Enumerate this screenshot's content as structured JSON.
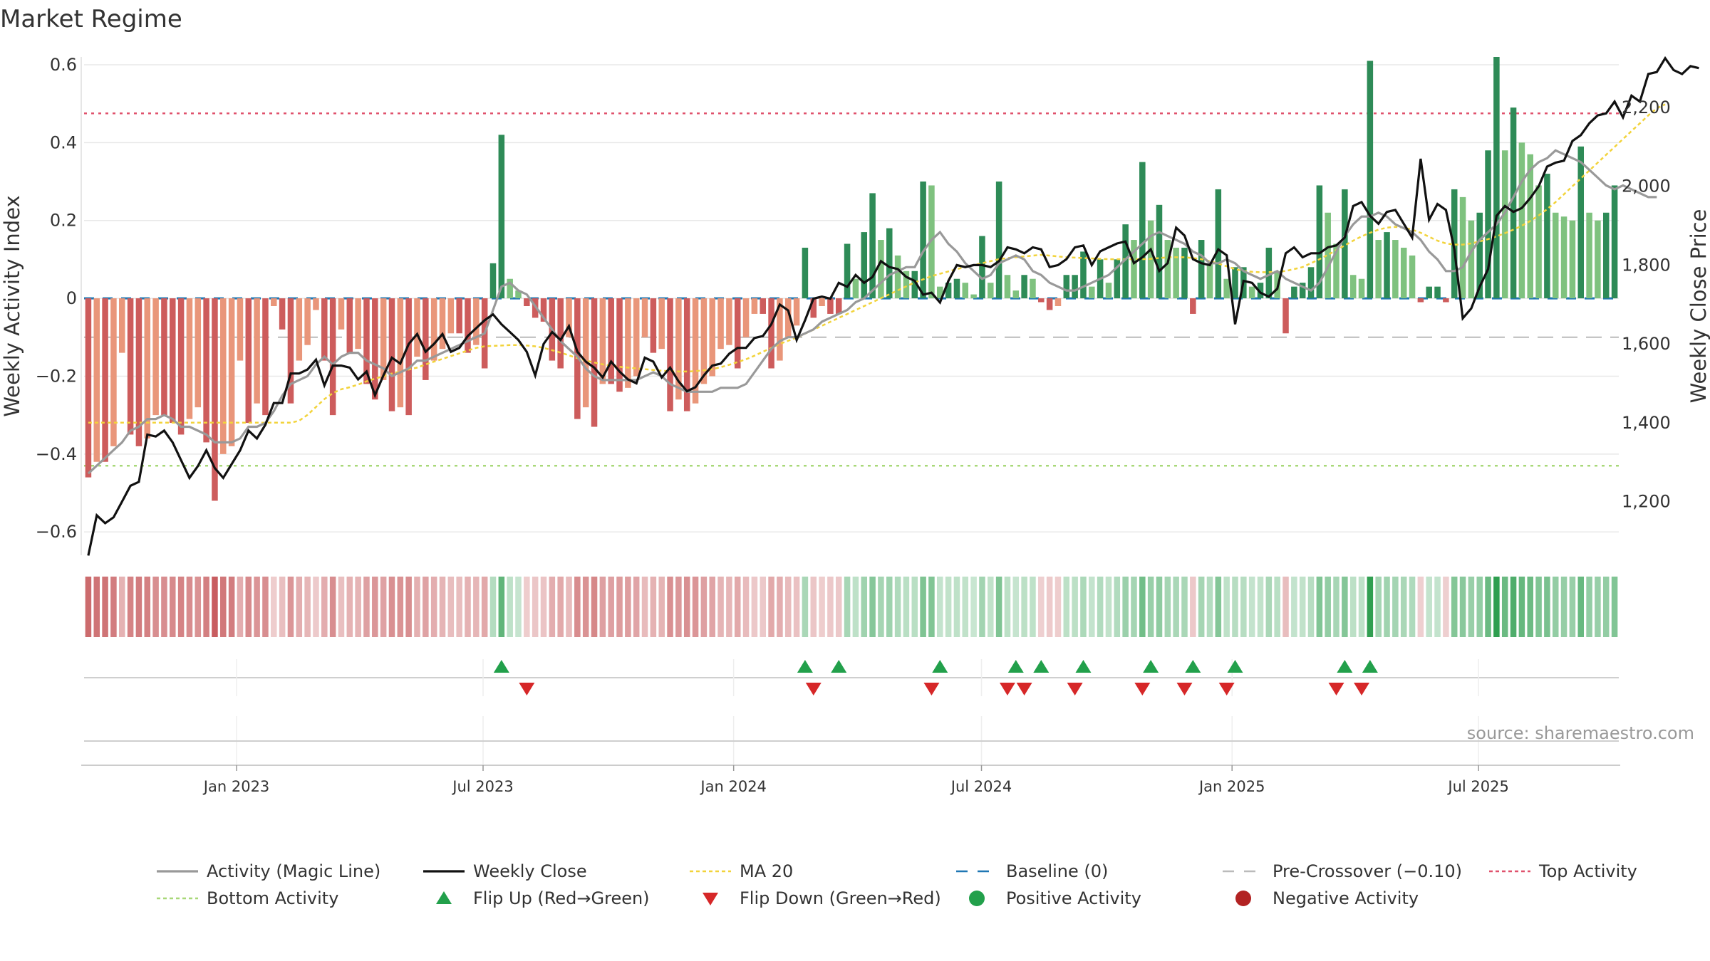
{
  "chart_data": {
    "type": "bar",
    "title": "Market Regime",
    "ylabel_left": "Weekly Activity Index",
    "ylabel_right": "Weekly Close Price",
    "source": "source: sharemaestro.com",
    "x_start": "2022-09-11",
    "x_end": "2025-10-12",
    "left_axis": {
      "ylim": [
        -0.66,
        0.62
      ],
      "ticks": [
        0.6,
        0.4,
        0.2,
        0,
        -0.2,
        -0.4,
        -0.6
      ],
      "tick_labels": [
        "0.6",
        "0.4",
        "0.2",
        "0",
        "−0.2",
        "−0.4",
        "−0.6"
      ]
    },
    "right_axis": {
      "ylim": [
        1063.7,
        2328.3
      ],
      "ticks": [
        2200,
        2000,
        1800,
        1600,
        1400,
        1200
      ],
      "tick_labels": [
        "2,200",
        "2,000",
        "1,800",
        "1,600",
        "1,400",
        "1,200"
      ]
    },
    "x_ticks": [
      {
        "date": "2023-01-01",
        "label": "Jan 2023"
      },
      {
        "date": "2023-07-01",
        "label": "Jul 2023"
      },
      {
        "date": "2024-01-01",
        "label": "Jan 2024"
      },
      {
        "date": "2024-07-01",
        "label": "Jul 2024"
      },
      {
        "date": "2025-01-01",
        "label": "Jan 2025"
      },
      {
        "date": "2025-07-01",
        "label": "Jul 2025"
      }
    ],
    "reference_lines": [
      {
        "name": "Top Activity",
        "value": 0.475,
        "color": "#e0526d"
      },
      {
        "name": "Bottom Activity",
        "value": -0.43,
        "color": "#a8d878"
      },
      {
        "name": "Baseline (0)",
        "value": 0,
        "color": "#1f77b4"
      },
      {
        "name": "Pre-Crossover (−0.10)",
        "value": -0.1,
        "color": "#bbbbbb"
      }
    ],
    "activity_bars": [
      -0.46,
      -0.42,
      -0.42,
      -0.38,
      -0.14,
      -0.35,
      -0.38,
      -0.36,
      -0.3,
      -0.3,
      -0.32,
      -0.35,
      -0.31,
      -0.28,
      -0.37,
      -0.52,
      -0.4,
      -0.38,
      -0.16,
      -0.32,
      -0.27,
      -0.3,
      -0.02,
      -0.08,
      -0.27,
      -0.16,
      -0.12,
      -0.03,
      -0.16,
      -0.3,
      -0.08,
      -0.14,
      -0.13,
      -0.22,
      -0.26,
      -0.21,
      -0.29,
      -0.28,
      -0.3,
      -0.15,
      -0.21,
      -0.16,
      -0.13,
      -0.09,
      -0.09,
      -0.14,
      -0.12,
      -0.18,
      0.09,
      0.42,
      0.05,
      0.02,
      -0.02,
      -0.05,
      -0.06,
      -0.16,
      -0.18,
      -0.1,
      -0.31,
      -0.28,
      -0.33,
      -0.22,
      -0.22,
      -0.24,
      -0.23,
      -0.2,
      -0.1,
      -0.14,
      -0.13,
      -0.29,
      -0.26,
      -0.29,
      -0.27,
      -0.22,
      -0.2,
      -0.13,
      -0.12,
      -0.18,
      -0.1,
      -0.04,
      -0.04,
      -0.18,
      -0.16,
      -0.1,
      -0.07,
      0.13,
      -0.05,
      -0.02,
      -0.04,
      -0.04,
      0.14,
      0.05,
      0.17,
      0.27,
      0.15,
      0.18,
      0.11,
      0.07,
      0.07,
      0.3,
      0.29,
      0.03,
      0.04,
      0.05,
      0.04,
      0.01,
      0.16,
      0.04,
      0.3,
      0.06,
      0.02,
      0.06,
      0.05,
      -0.01,
      -0.03,
      -0.02,
      0.06,
      0.06,
      0.12,
      0.03,
      0.1,
      0.04,
      0.1,
      0.19,
      0.15,
      0.35,
      0.2,
      0.24,
      0.15,
      0.13,
      0.13,
      -0.04,
      0.15,
      0.09,
      0.28,
      0.05,
      0.08,
      0.08,
      0.03,
      0.04,
      0.13,
      0.07,
      -0.09,
      0.03,
      0.04,
      0.08,
      0.29,
      0.22,
      0.14,
      0.28,
      0.06,
      0.05,
      0.61,
      0.15,
      0.17,
      0.15,
      0.13,
      0.11,
      -0.01,
      0.03,
      0.03,
      -0.01,
      0.28,
      0.26,
      0.2,
      0.22,
      0.38,
      0.62,
      0.38,
      0.49,
      0.4,
      0.37,
      0.29,
      0.32,
      0.22,
      0.21,
      0.2,
      0.39,
      0.22,
      0.2,
      0.22,
      0.29
    ],
    "weekly_close": [
      1063,
      1165,
      1145,
      1160,
      1200,
      1240,
      1250,
      1370,
      1365,
      1380,
      1350,
      1305,
      1260,
      1290,
      1330,
      1285,
      1260,
      1295,
      1330,
      1380,
      1360,
      1395,
      1450,
      1450,
      1525,
      1525,
      1535,
      1560,
      1495,
      1545,
      1545,
      1540,
      1510,
      1530,
      1470,
      1520,
      1565,
      1550,
      1600,
      1625,
      1580,
      1600,
      1625,
      1580,
      1590,
      1620,
      1640,
      1660,
      1675,
      1650,
      1630,
      1610,
      1580,
      1520,
      1600,
      1630,
      1610,
      1645,
      1580,
      1555,
      1540,
      1515,
      1555,
      1530,
      1510,
      1500,
      1565,
      1555,
      1515,
      1540,
      1505,
      1480,
      1490,
      1520,
      1545,
      1550,
      1575,
      1590,
      1590,
      1615,
      1620,
      1650,
      1700,
      1685,
      1610,
      1660,
      1715,
      1720,
      1715,
      1755,
      1745,
      1775,
      1755,
      1770,
      1810,
      1795,
      1790,
      1770,
      1760,
      1725,
      1730,
      1705,
      1760,
      1800,
      1795,
      1800,
      1800,
      1795,
      1810,
      1845,
      1840,
      1830,
      1845,
      1840,
      1795,
      1800,
      1815,
      1845,
      1850,
      1800,
      1835,
      1845,
      1855,
      1860,
      1805,
      1820,
      1840,
      1785,
      1805,
      1895,
      1875,
      1815,
      1805,
      1800,
      1840,
      1825,
      1650,
      1760,
      1755,
      1730,
      1720,
      1740,
      1830,
      1845,
      1820,
      1830,
      1830,
      1845,
      1850,
      1870,
      1950,
      1960,
      1925,
      1905,
      1935,
      1940,
      1905,
      1870,
      2070,
      1915,
      1955,
      1940,
      1840,
      1665,
      1690,
      1745,
      1790,
      1925,
      1950,
      1935,
      1945,
      1970,
      2000,
      2050,
      2060,
      2065,
      2115,
      2130,
      2160,
      2180,
      2185,
      2215,
      2175,
      2230,
      2215,
      2285,
      2290,
      2325,
      2295,
      2285,
      2305,
      2300
    ],
    "activity_line": [
      -0.45,
      -0.43,
      -0.41,
      -0.39,
      -0.37,
      -0.34,
      -0.33,
      -0.31,
      -0.31,
      -0.3,
      -0.31,
      -0.33,
      -0.33,
      -0.34,
      -0.35,
      -0.37,
      -0.37,
      -0.37,
      -0.36,
      -0.33,
      -0.33,
      -0.32,
      -0.29,
      -0.25,
      -0.22,
      -0.21,
      -0.2,
      -0.17,
      -0.15,
      -0.17,
      -0.15,
      -0.14,
      -0.14,
      -0.16,
      -0.17,
      -0.18,
      -0.2,
      -0.19,
      -0.18,
      -0.16,
      -0.16,
      -0.15,
      -0.14,
      -0.13,
      -0.12,
      -0.11,
      -0.1,
      -0.09,
      -0.03,
      0.03,
      0.04,
      0.02,
      0.01,
      -0.02,
      -0.05,
      -0.08,
      -0.11,
      -0.13,
      -0.15,
      -0.18,
      -0.2,
      -0.21,
      -0.21,
      -0.21,
      -0.21,
      -0.21,
      -0.2,
      -0.19,
      -0.2,
      -0.22,
      -0.23,
      -0.24,
      -0.24,
      -0.24,
      -0.24,
      -0.23,
      -0.23,
      -0.23,
      -0.22,
      -0.19,
      -0.16,
      -0.13,
      -0.11,
      -0.1,
      -0.1,
      -0.09,
      -0.08,
      -0.06,
      -0.05,
      -0.04,
      -0.03,
      -0.01,
      0.0,
      0.02,
      0.04,
      0.06,
      0.07,
      0.08,
      0.08,
      0.12,
      0.15,
      0.17,
      0.14,
      0.12,
      0.09,
      0.07,
      0.05,
      0.06,
      0.09,
      0.1,
      0.11,
      0.1,
      0.07,
      0.06,
      0.04,
      0.03,
      0.02,
      0.02,
      0.03,
      0.04,
      0.05,
      0.06,
      0.08,
      0.1,
      0.12,
      0.14,
      0.16,
      0.17,
      0.16,
      0.15,
      0.14,
      0.12,
      0.11,
      0.09,
      0.09,
      0.1,
      0.09,
      0.07,
      0.06,
      0.05,
      0.06,
      0.07,
      0.05,
      0.04,
      0.03,
      0.02,
      0.04,
      0.08,
      0.12,
      0.16,
      0.19,
      0.21,
      0.21,
      0.22,
      0.21,
      0.19,
      0.18,
      0.17,
      0.15,
      0.12,
      0.1,
      0.07,
      0.07,
      0.08,
      0.12,
      0.15,
      0.17,
      0.19,
      0.22,
      0.26,
      0.3,
      0.33,
      0.35,
      0.36,
      0.38,
      0.37,
      0.36,
      0.35,
      0.33,
      0.31,
      0.29,
      0.28,
      0.29,
      0.28,
      0.27,
      0.26,
      0.26
    ],
    "ma20": [
      1400,
      1400,
      1400,
      1400,
      1400,
      1400,
      1400,
      1400,
      1400,
      1400,
      1400,
      1400,
      1400,
      1400,
      1400,
      1400,
      1400,
      1400,
      1400,
      1400,
      1400,
      1400,
      1400,
      1400,
      1400,
      1405,
      1420,
      1440,
      1460,
      1475,
      1485,
      1490,
      1497,
      1505,
      1512,
      1518,
      1525,
      1530,
      1535,
      1540,
      1548,
      1555,
      1562,
      1569,
      1576,
      1583,
      1590,
      1594,
      1595,
      1596,
      1597,
      1597,
      1596,
      1594,
      1590,
      1584,
      1578,
      1571,
      1564,
      1558,
      1553,
      1548,
      1545,
      1542,
      1540,
      1538,
      1536,
      1534,
      1532,
      1531,
      1530,
      1530,
      1531,
      1533,
      1536,
      1541,
      1547,
      1554,
      1561,
      1570,
      1580,
      1590,
      1600,
      1608,
      1616,
      1626,
      1636,
      1646,
      1656,
      1666,
      1676,
      1686,
      1696,
      1706,
      1716,
      1726,
      1736,
      1746,
      1756,
      1764,
      1772,
      1778,
      1784,
      1790,
      1795,
      1800,
      1805,
      1810,
      1815,
      1818,
      1820,
      1822,
      1824,
      1826,
      1824,
      1822,
      1820,
      1819,
      1818,
      1817,
      1816,
      1815,
      1815,
      1815,
      1815,
      1815,
      1816,
      1818,
      1820,
      1820,
      1820,
      1818,
      1815,
      1810,
      1804,
      1797,
      1790,
      1785,
      1783,
      1782,
      1782,
      1783,
      1785,
      1790,
      1795,
      1805,
      1815,
      1826,
      1838,
      1850,
      1862,
      1873,
      1882,
      1890,
      1895,
      1897,
      1895,
      1890,
      1882,
      1872,
      1862,
      1855,
      1852,
      1852,
      1855,
      1860,
      1866,
      1873,
      1881,
      1890,
      1900,
      1912,
      1926,
      1942,
      1960,
      1980,
      2000,
      2020,
      2040,
      2060,
      2080,
      2100,
      2120,
      2140,
      2160,
      2180,
      2198,
      2208
    ],
    "flip_up": [
      49,
      85,
      89,
      101,
      110,
      113,
      118,
      126,
      131,
      136,
      149,
      152
    ],
    "flip_down": [
      52,
      86,
      100,
      109,
      111,
      117,
      125,
      130,
      135,
      148,
      151
    ],
    "legend": [
      {
        "label": "Activity (Magic Line)",
        "marker": "line",
        "color": "#999999"
      },
      {
        "label": "Weekly Close",
        "marker": "line",
        "color": "#111111"
      },
      {
        "label": "MA 20",
        "marker": "dotted-line",
        "color": "#f2d33b"
      },
      {
        "label": "Baseline (0)",
        "marker": "dashed-line",
        "color": "#1f77b4"
      },
      {
        "label": "Pre-Crossover (−0.10)",
        "marker": "dashed-line",
        "color": "#bbbbbb"
      },
      {
        "label": "Top Activity",
        "marker": "dotted-line",
        "color": "#e0526d"
      },
      {
        "label": "Bottom Activity",
        "marker": "dotted-line",
        "color": "#a8d878"
      },
      {
        "label": "Flip Up (Red→Green)",
        "marker": "triangle-up",
        "color": "#22a04b"
      },
      {
        "label": "Flip Down (Green→Red)",
        "marker": "triangle-down",
        "color": "#d62728"
      },
      {
        "label": "Positive Activity",
        "marker": "circle",
        "color": "#22a04b"
      },
      {
        "label": "Negative Activity",
        "marker": "circle",
        "color": "#b22222"
      }
    ],
    "colors": {
      "pos_strong": "#2e8b57",
      "pos_light": "#7fc27f",
      "neg_strong": "#cd5c5c",
      "neg_light": "#e9967a",
      "close": "#111111",
      "activity_line": "#999999",
      "ma20": "#f2d33b"
    }
  }
}
